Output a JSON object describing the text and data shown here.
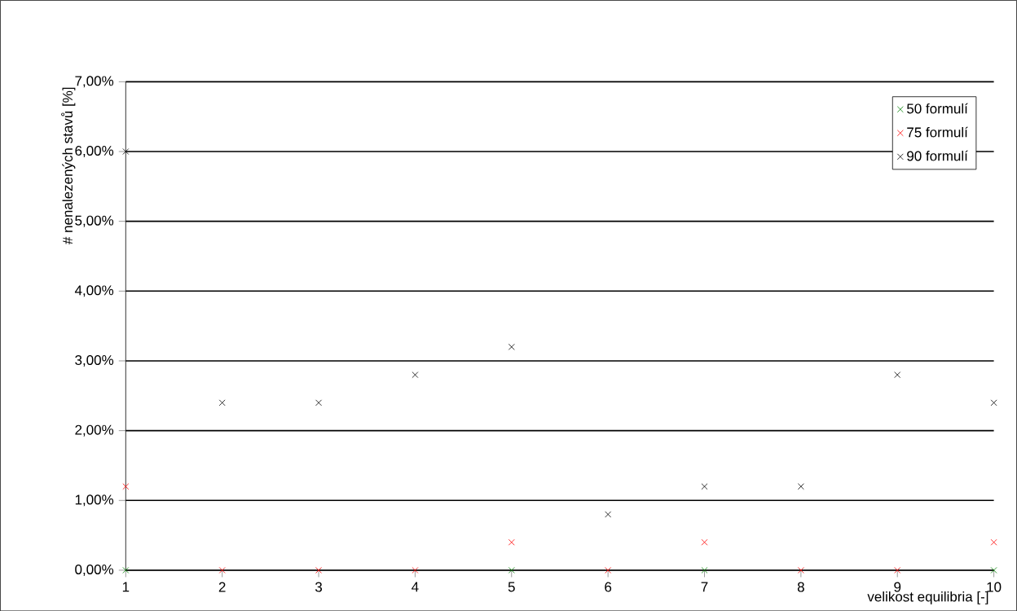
{
  "chart_data": {
    "type": "scatter",
    "xlabel": "velikost equilibria [-]",
    "ylabel": "# nenalezených stavů [%]",
    "x": [
      1,
      2,
      3,
      4,
      5,
      6,
      7,
      8,
      9,
      10
    ],
    "series": [
      {
        "name": "50 formulí",
        "color": "#008000",
        "values": [
          0,
          null,
          null,
          null,
          0,
          null,
          0,
          null,
          null,
          0
        ]
      },
      {
        "name": "75 formulí",
        "color": "#ff0000",
        "values": [
          1.2,
          0,
          0,
          0,
          0.4,
          0,
          0.4,
          0,
          0,
          0.4
        ]
      },
      {
        "name": "90 formulí",
        "color": "#000000",
        "values": [
          6.0,
          2.4,
          2.4,
          2.8,
          3.2,
          0.8,
          1.2,
          1.2,
          2.8,
          2.4
        ]
      }
    ],
    "xlim": [
      1,
      10
    ],
    "ylim": [
      0,
      7
    ],
    "xticks": [
      1,
      2,
      3,
      4,
      5,
      6,
      7,
      8,
      9,
      10
    ],
    "yticks": [
      {
        "value": 0,
        "label": "0,00%"
      },
      {
        "value": 1,
        "label": "1,00%"
      },
      {
        "value": 2,
        "label": "2,00%"
      },
      {
        "value": 3,
        "label": "3,00%"
      },
      {
        "value": 4,
        "label": "4,00%"
      },
      {
        "value": 5,
        "label": "5,00%"
      },
      {
        "value": 6,
        "label": "6,00%"
      },
      {
        "value": 7,
        "label": "7,00%"
      }
    ],
    "grid": "y",
    "legend": "top right",
    "marker": "cross"
  }
}
